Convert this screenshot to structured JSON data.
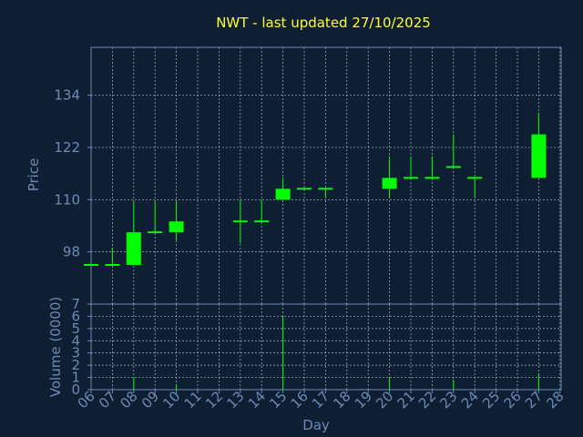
{
  "chart_data": {
    "type": "candlestick",
    "title": "NWT - last updated 27/10/2025",
    "xlabel": "Day",
    "price_ylabel": "Price",
    "volume_ylabel": "Volume (0000)",
    "x_tick_labels": [
      "06",
      "07",
      "08",
      "09",
      "10",
      "11",
      "12",
      "13",
      "14",
      "15",
      "16",
      "17",
      "18",
      "19",
      "20",
      "21",
      "22",
      "23",
      "24",
      "25",
      "26",
      "27",
      "28"
    ],
    "price_ticks": [
      98,
      110,
      122,
      134
    ],
    "price_ylim": [
      86,
      145
    ],
    "volume_ticks": [
      0,
      1,
      2,
      3,
      4,
      5,
      6,
      7
    ],
    "volume_ylim": [
      0,
      7
    ],
    "grid": true,
    "candles": [
      {
        "day": "06",
        "open": 95,
        "close": 95,
        "high": 95,
        "low": 95
      },
      {
        "day": "07",
        "open": 95,
        "close": 95,
        "high": 99,
        "low": 95
      },
      {
        "day": "08",
        "open": 95,
        "close": 102.5,
        "high": 109.5,
        "low": 95
      },
      {
        "day": "09",
        "open": 102.5,
        "close": 102.5,
        "high": 109.5,
        "low": 102.5
      },
      {
        "day": "10",
        "open": 102.5,
        "close": 105,
        "high": 109.5,
        "low": 100.5
      },
      {
        "day": "13",
        "open": 105,
        "close": 105,
        "high": 110,
        "low": 100
      },
      {
        "day": "14",
        "open": 105,
        "close": 105,
        "high": 110,
        "low": 105
      },
      {
        "day": "15",
        "open": 110,
        "close": 112.5,
        "high": 115,
        "low": 110
      },
      {
        "day": "16",
        "open": 112.5,
        "close": 112.5,
        "high": 112.5,
        "low": 112.5
      },
      {
        "day": "17",
        "open": 112.5,
        "close": 112.5,
        "high": 112.5,
        "low": 110.5
      },
      {
        "day": "20",
        "open": 112.5,
        "close": 115,
        "high": 120,
        "low": 110.5
      },
      {
        "day": "21",
        "open": 115,
        "close": 115,
        "high": 120,
        "low": 115
      },
      {
        "day": "22",
        "open": 115,
        "close": 115,
        "high": 120,
        "low": 115
      },
      {
        "day": "23",
        "open": 117.5,
        "close": 117.5,
        "high": 125,
        "low": 117.5
      },
      {
        "day": "24",
        "open": 115,
        "close": 115,
        "high": 115,
        "low": 110.5
      },
      {
        "day": "27",
        "open": 115,
        "close": 125,
        "high": 130,
        "low": 115
      }
    ],
    "volume": [
      {
        "day": "08",
        "value": 1
      },
      {
        "day": "10",
        "value": 0.4
      },
      {
        "day": "15",
        "value": 6
      },
      {
        "day": "20",
        "value": 1
      },
      {
        "day": "23",
        "value": 0.8
      },
      {
        "day": "27",
        "value": 1.3
      }
    ],
    "colors": {
      "background": "#0f1f33",
      "axis": "#6d8ab3",
      "grid": "#a9b6c8",
      "title": "#ffff33",
      "tick_text": "#6d8ab3",
      "candle": "#00ff00"
    }
  }
}
